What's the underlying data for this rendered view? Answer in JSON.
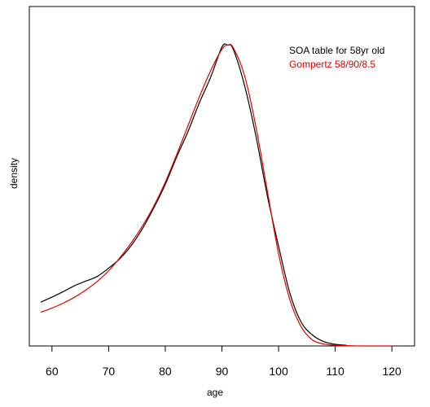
{
  "chart_data": {
    "type": "line",
    "xlabel": "age",
    "ylabel": "density",
    "xlim": [
      56,
      124
    ],
    "ylim": [
      0,
      1.03
    ],
    "x_ticks": [
      60,
      70,
      80,
      90,
      100,
      110,
      120
    ],
    "grid": false,
    "legend_position": "top-right",
    "series": [
      {
        "name": "SOA table for 58yr old",
        "color": "#000000",
        "x": [
          58,
          60,
          62,
          64,
          66,
          68,
          70,
          72,
          74,
          76,
          78,
          80,
          82,
          84,
          86,
          88,
          90,
          91,
          92,
          94,
          96,
          98,
          100,
          102,
          104,
          106,
          108,
          110,
          112
        ],
        "y": [
          0.133,
          0.148,
          0.165,
          0.183,
          0.197,
          0.211,
          0.236,
          0.265,
          0.305,
          0.357,
          0.42,
          0.49,
          0.573,
          0.65,
          0.737,
          0.815,
          0.907,
          0.913,
          0.9,
          0.79,
          0.637,
          0.457,
          0.303,
          0.16,
          0.072,
          0.033,
          0.013,
          0.005,
          0.002
        ]
      },
      {
        "name": "Gompertz 58/90/8.5",
        "color": "#e00000",
        "x": [
          58,
          60,
          62,
          64,
          66,
          68,
          70,
          72,
          74,
          76,
          78,
          80,
          82,
          84,
          86,
          88,
          90,
          91,
          92,
          94,
          96,
          98,
          100,
          102,
          104,
          106,
          108,
          110,
          112,
          115,
          120
        ],
        "y": [
          0.102,
          0.115,
          0.13,
          0.148,
          0.17,
          0.196,
          0.228,
          0.268,
          0.313,
          0.365,
          0.425,
          0.497,
          0.58,
          0.668,
          0.755,
          0.835,
          0.9,
          0.913,
          0.905,
          0.82,
          0.665,
          0.472,
          0.28,
          0.14,
          0.058,
          0.018,
          0.006,
          0.002,
          0.001,
          0.0,
          0.0
        ]
      }
    ]
  }
}
